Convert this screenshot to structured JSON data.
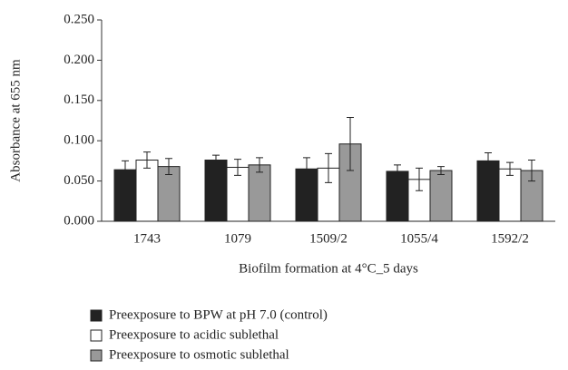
{
  "chart_data": {
    "type": "bar",
    "categories": [
      "1743",
      "1079",
      "1509/2",
      "1055/4",
      "1592/2"
    ],
    "series": [
      {
        "name": "Preexposure to BPW at pH 7.0 (control)",
        "color": "#222222",
        "values": [
          0.064,
          0.076,
          0.065,
          0.062,
          0.075
        ],
        "errors": [
          0.011,
          0.006,
          0.014,
          0.008,
          0.01
        ]
      },
      {
        "name": "Preexposure to acidic sublethal",
        "color": "#ffffff",
        "values": [
          0.076,
          0.067,
          0.066,
          0.052,
          0.065
        ],
        "errors": [
          0.01,
          0.01,
          0.018,
          0.014,
          0.008
        ]
      },
      {
        "name": "Preexposure to osmotic sublethal",
        "color": "#999999",
        "values": [
          0.068,
          0.07,
          0.096,
          0.063,
          0.063
        ],
        "errors": [
          0.01,
          0.009,
          0.033,
          0.005,
          0.013
        ]
      }
    ],
    "xlabel": "Biofilm formation at 4°C_5 days",
    "ylabel": "Absorbance at 655 nm",
    "ylim": [
      0,
      0.25
    ],
    "yticks": [
      {
        "value": 0,
        "label": "0.000"
      },
      {
        "value": 0.05,
        "label": "0.050"
      },
      {
        "value": 0.1,
        "label": "0.100"
      },
      {
        "value": 0.15,
        "label": "0.150"
      },
      {
        "value": 0.2,
        "label": "0.200"
      },
      {
        "value": 0.25,
        "label": "0.250"
      }
    ],
    "legend": "bottom"
  }
}
